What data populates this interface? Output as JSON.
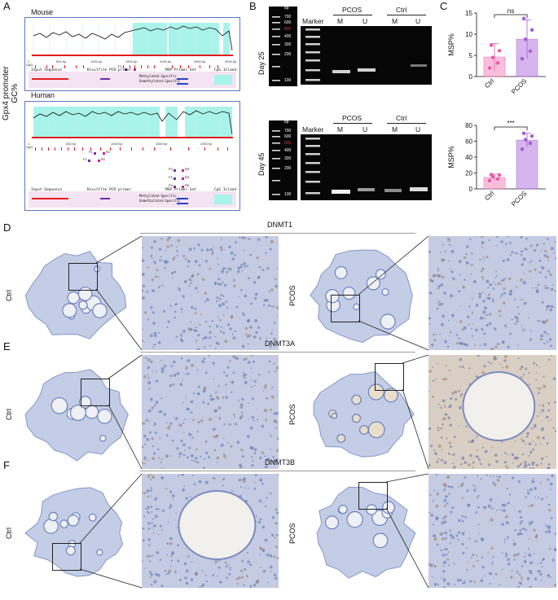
{
  "panels": {
    "A": "A",
    "B": "B",
    "C": "C",
    "D": "D",
    "E": "E",
    "F": "F"
  },
  "panelA": {
    "ylabel": "Gpx4 promoter\nGC%",
    "ylabel_line1": "Gpx4 promoter",
    "ylabel_line2": "GC%",
    "mouse": {
      "title": "Mouse",
      "axis_ticks": [
        "1",
        "500 bp",
        "1000 bp",
        "1500 bp",
        "2000 bp",
        "2500 bp",
        "3000 bp"
      ],
      "legend": [
        "Input Sequence",
        "Bisulfite PCR primer",
        "MSP Primer Set",
        "CpG Island"
      ],
      "legend_sub": [
        "Methylated-Specific",
        "Unmethylated-Specific"
      ],
      "primer_label": "F1",
      "cpg": "CpG"
    },
    "human": {
      "title": "Human",
      "axis_ticks": [
        "1",
        "500 bp",
        "1000 bp",
        "1500 bp",
        "2000 bp",
        "2500 bp"
      ],
      "legend": [
        "Input Sequence",
        "Bisulfite PCR primer",
        "MSP Primer Set",
        "CpG Island"
      ],
      "legend_sub": [
        "Methylated-Specific",
        "Unmethylated-Specific"
      ],
      "primers": [
        "F1",
        "R1",
        "F2",
        "R2",
        "F3",
        "R3",
        "F4",
        "R4",
        "F5",
        "R5"
      ],
      "cpg": "CpG"
    }
  },
  "panelB": {
    "day25": "Day 25",
    "day45": "Day 45",
    "marker": "Marker",
    "groups": [
      "PCOS",
      "Ctrl"
    ],
    "lanes": [
      "M",
      "U",
      "M",
      "U"
    ],
    "ladder": [
      "bp",
      "700",
      "600",
      "500",
      "400",
      "300",
      "200",
      "100"
    ],
    "ladder_highlight_color": "#d23a3a"
  },
  "chart_data": [
    {
      "type": "bar",
      "categories": [
        "Ctrl",
        "PCOS"
      ],
      "values": [
        4.6,
        8.8
      ],
      "errors": [
        3.2,
        4.6
      ],
      "points": [
        [
          2.0,
          3.2,
          4.5,
          6.1,
          7.4
        ],
        [
          4.2,
          6.0,
          8.8,
          11.0,
          13.7
        ]
      ],
      "ylabel": "MSP%",
      "ylim": [
        0,
        15
      ],
      "yticks": [
        0,
        5,
        10,
        15
      ],
      "significance": "ns",
      "colors": [
        "#f7a9cf",
        "#c99be8"
      ],
      "point_colors": [
        "#ea5aa6",
        "#a45bd6"
      ]
    },
    {
      "type": "bar",
      "categories": [
        "Ctrl",
        "PCOS"
      ],
      "values": [
        14.5,
        61.5
      ],
      "errors": [
        4.0,
        8.5
      ],
      "points": [
        [
          10.5,
          12.5,
          15.5,
          17.5,
          18.0
        ],
        [
          50.0,
          57.5,
          62.0,
          66.5,
          70.0
        ]
      ],
      "ylabel": "MSP%",
      "ylim": [
        0,
        80
      ],
      "yticks": [
        0,
        20,
        40,
        60,
        80
      ],
      "significance": "***",
      "colors": [
        "#f7a9cf",
        "#c99be8"
      ],
      "point_colors": [
        "#ea5aa6",
        "#a45bd6"
      ]
    }
  ],
  "ihc": [
    {
      "letter": "D",
      "title": "DNMT1",
      "left_label": "Ctrl",
      "right_label": "PCOS"
    },
    {
      "letter": "E",
      "title": "DNMT3A",
      "left_label": "Ctrl",
      "right_label": "PCOS"
    },
    {
      "letter": "F",
      "title": "DNMT3B",
      "left_label": "Ctrl",
      "right_label": "PCOS"
    }
  ],
  "colors": {
    "cpg_island": "#a8f3ea",
    "frame_blue": "#5b78c8",
    "red_axis": "#e31b1b",
    "stain_blue": "#7d8fc4",
    "stain_brown": "#b7936a"
  }
}
